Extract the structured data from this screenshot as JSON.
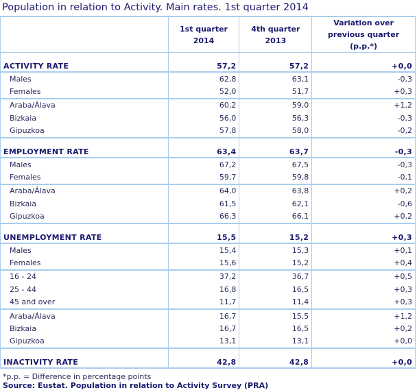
{
  "title": "Population in relation to Activity. Main rates. 1st quarter 2014",
  "headers": [
    "",
    "1st quarter 2014",
    "4th quarter 2013",
    "Variation over previous quarter (p.p.*)"
  ],
  "sections": [
    {
      "label": "ACTIVITY RATE",
      "values": [
        "57,2",
        "57,2",
        "+0,0"
      ],
      "groups": [
        [
          [
            "Males",
            "62,8",
            "63,1",
            "-0,3"
          ],
          [
            "Females",
            "52,0",
            "51,7",
            "+0,3"
          ]
        ],
        [
          [
            "Araba/Álava",
            "60,2",
            "59,0",
            "+1,2"
          ],
          [
            "Bizkaia",
            "56,0",
            "56,3",
            "-0,3"
          ],
          [
            "Gipuzkoa",
            "57,8",
            "58,0",
            "-0,2"
          ]
        ]
      ]
    },
    {
      "label": "EMPLOYMENT RATE",
      "values": [
        "63,4",
        "63,7",
        "-0,3"
      ],
      "groups": [
        [
          [
            "Males",
            "67,2",
            "67,5",
            "-0,3"
          ],
          [
            "Females",
            "59,7",
            "59,8",
            "-0,1"
          ]
        ],
        [
          [
            "Araba/Álava",
            "64,0",
            "63,8",
            "+0,2"
          ],
          [
            "Bizkaia",
            "61,5",
            "62,1",
            "-0,6"
          ],
          [
            "Gipuzkoa",
            "66,3",
            "66,1",
            "+0,2"
          ]
        ]
      ]
    },
    {
      "label": "UNEMPLOYMENT RATE",
      "values": [
        "15,5",
        "15,2",
        "+0,3"
      ],
      "groups": [
        [
          [
            "Males",
            "15,4",
            "15,3",
            "+0,1"
          ],
          [
            "Females",
            "15,6",
            "15,2",
            "+0,4"
          ]
        ],
        [
          [
            "16 - 24",
            "37,2",
            "36,7",
            "+0,5"
          ],
          [
            "25 - 44",
            "16,8",
            "16,5",
            "+0,3"
          ],
          [
            "45 and over",
            "11,7",
            "11,4",
            "+0,3"
          ]
        ],
        [
          [
            "Araba/Álava",
            "16,7",
            "15,5",
            "+1,2"
          ],
          [
            "Bizkaia",
            "16,7",
            "16,5",
            "+0,2"
          ],
          [
            "Gipuzkoa",
            "13,1",
            "13,1",
            "+0,0"
          ]
        ]
      ]
    },
    {
      "label": "INACTIVITY RATE",
      "values": [
        "42,8",
        "42,8",
        "+0,0"
      ],
      "groups": []
    }
  ],
  "footnote": "*p.p. = Difference in percentage points",
  "source": "Source: Eustat. Population in relation to Activity Survey (PRA)"
}
